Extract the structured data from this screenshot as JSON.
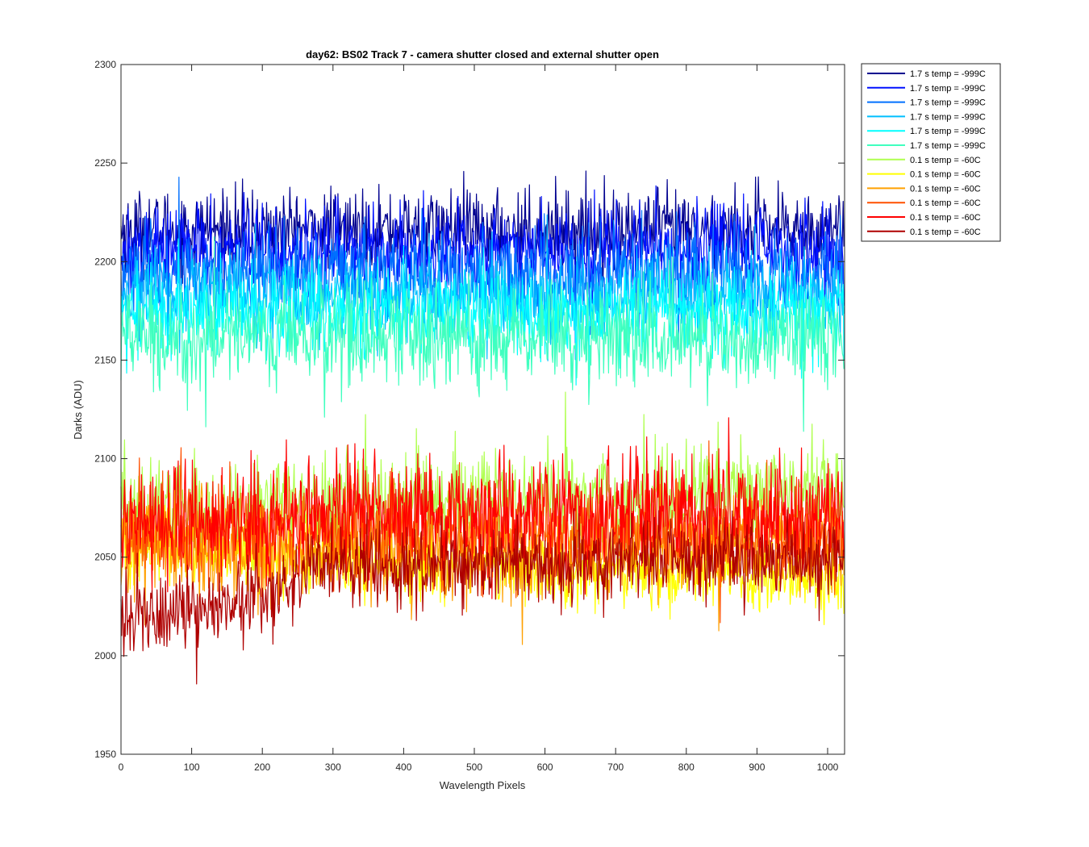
{
  "chart_data": {
    "type": "line",
    "title": "day62: BS02  Track 7 - camera shutter closed and external shutter open",
    "xlabel": "Wavelength Pixels",
    "ylabel": "Darks (ADU)",
    "xlim": [
      0,
      1024
    ],
    "ylim": [
      1950,
      2300
    ],
    "xticks": [
      0,
      100,
      200,
      300,
      400,
      500,
      600,
      700,
      800,
      900,
      1000
    ],
    "yticks": [
      1950,
      2000,
      2050,
      2100,
      2150,
      2200,
      2250,
      2300
    ],
    "grid": false,
    "legend_position": "outside-top-right",
    "series": [
      {
        "name": "1.7 s temp = -999C",
        "color": "#00008f",
        "mean": 2216,
        "spread": 10,
        "trend": 0
      },
      {
        "name": "1.7 s temp = -999C",
        "color": "#0010ff",
        "mean": 2206,
        "spread": 11,
        "trend": 0
      },
      {
        "name": "1.7 s temp = -999C",
        "color": "#0070ff",
        "mean": 2194,
        "spread": 11,
        "trend": 0
      },
      {
        "name": "1.7 s temp = -999C",
        "color": "#00bfff",
        "mean": 2182,
        "spread": 11,
        "trend": 0
      },
      {
        "name": "1.7 s temp = -999C",
        "color": "#00ffff",
        "mean": 2174,
        "spread": 11,
        "trend": 0
      },
      {
        "name": "1.7 s temp = -999C",
        "color": "#40ffbf",
        "mean": 2162,
        "spread": 13,
        "trend": 0
      },
      {
        "name": "0.1 s temp = -60C",
        "color": "#afff4f",
        "mean": 2080,
        "spread": 13,
        "trend": 8
      },
      {
        "name": "0.1 s temp = -60C",
        "color": "#ffff00",
        "mean": 2045,
        "spread": 9,
        "trend": -12
      },
      {
        "name": "0.1 s temp = -60C",
        "color": "#ffa000",
        "mean": 2055,
        "spread": 12,
        "trend": 0
      },
      {
        "name": "0.1 s temp = -60C",
        "color": "#ff5000",
        "mean": 2062,
        "spread": 13,
        "trend": -4
      },
      {
        "name": "0.1 s temp = -60C",
        "color": "#ff0000",
        "mean": 2072,
        "spread": 14,
        "trend": 5
      },
      {
        "name": "0.1 s temp = -60C",
        "color": "#af0000",
        "mean": 2045,
        "spread": 10,
        "trend": 28
      }
    ]
  }
}
